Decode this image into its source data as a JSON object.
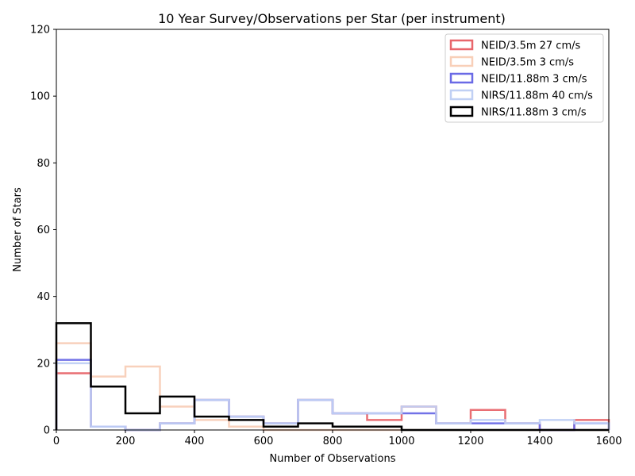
{
  "chart_data": {
    "type": "histogram-step",
    "title": "10 Year Survey/Observations per Star (per instrument)",
    "xlabel": "Number of Observations",
    "ylabel": "Number of Stars",
    "xlim": [
      0,
      1600
    ],
    "ylim": [
      0,
      120
    ],
    "xticks": [
      0,
      200,
      400,
      600,
      800,
      1000,
      1200,
      1400,
      1600
    ],
    "yticks": [
      0,
      20,
      40,
      60,
      80,
      100,
      120
    ],
    "grid": false,
    "legend_position": "top-right",
    "bin_edges": [
      0,
      100,
      200,
      300,
      400,
      500,
      600,
      700,
      800,
      900,
      1000,
      1100,
      1200,
      1300,
      1400,
      1500,
      1600
    ],
    "series": [
      {
        "name": "NEID/3.5m 27 cm/s",
        "color": "#e8666b",
        "counts": [
          17,
          1,
          0,
          2,
          9,
          4,
          2,
          9,
          5,
          3,
          7,
          2,
          6,
          2,
          0,
          3
        ]
      },
      {
        "name": "NEID/3.5m 3 cm/s",
        "color": "#f8cfb8",
        "counts": [
          26,
          16,
          19,
          7,
          3,
          1,
          0,
          0,
          0,
          0,
          0,
          0,
          0,
          0,
          0,
          0
        ]
      },
      {
        "name": "NEID/11.88m 3 cm/s",
        "color": "#6a6ae6",
        "counts": [
          21,
          1,
          0,
          2,
          9,
          4,
          2,
          9,
          5,
          5,
          5,
          2,
          2,
          2,
          0,
          2
        ]
      },
      {
        "name": "NIRS/11.88m 40 cm/s",
        "color": "#c0d0f4",
        "counts": [
          20,
          1,
          0,
          2,
          9,
          4,
          2,
          9,
          5,
          5,
          7,
          2,
          3,
          2,
          3,
          2
        ]
      },
      {
        "name": "NIRS/11.88m 3 cm/s",
        "color": "#000000",
        "counts": [
          32,
          13,
          5,
          10,
          4,
          3,
          1,
          2,
          1,
          1,
          0,
          0,
          0,
          0,
          0,
          0
        ]
      }
    ]
  }
}
